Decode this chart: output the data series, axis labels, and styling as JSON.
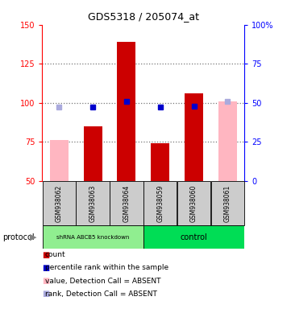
{
  "title": "GDS5318 / 205074_at",
  "samples": [
    "GSM938062",
    "GSM938063",
    "GSM938064",
    "GSM938059",
    "GSM938060",
    "GSM938061"
  ],
  "count_values": [
    null,
    85,
    139,
    74,
    106,
    null
  ],
  "count_absent": [
    76,
    null,
    null,
    null,
    null,
    101
  ],
  "percentile_values": [
    null,
    47,
    51,
    47,
    48,
    null
  ],
  "percentile_absent": [
    47,
    null,
    null,
    null,
    null,
    51
  ],
  "ylim_left": [
    50,
    150
  ],
  "ylim_right": [
    0,
    100
  ],
  "yticks_left": [
    50,
    75,
    100,
    125,
    150
  ],
  "yticks_right": [
    0,
    25,
    50,
    75,
    100
  ],
  "bar_color": "#cc0000",
  "bar_absent_color": "#ffb6c1",
  "percentile_color": "#0000cc",
  "percentile_absent_color": "#aaaadd",
  "group1_color": "#90EE90",
  "group2_color": "#00dd55",
  "sample_box_color": "#cccccc",
  "dotted_line_color": "#777777",
  "bar_width": 0.55,
  "percentile_size": 4,
  "hline_values": [
    75,
    100,
    125
  ],
  "legend_items": [
    {
      "color": "#cc0000",
      "label": "count"
    },
    {
      "color": "#0000cc",
      "label": "percentile rank within the sample"
    },
    {
      "color": "#ffb6c1",
      "label": "value, Detection Call = ABSENT"
    },
    {
      "color": "#aaaadd",
      "label": "rank, Detection Call = ABSENT"
    }
  ]
}
